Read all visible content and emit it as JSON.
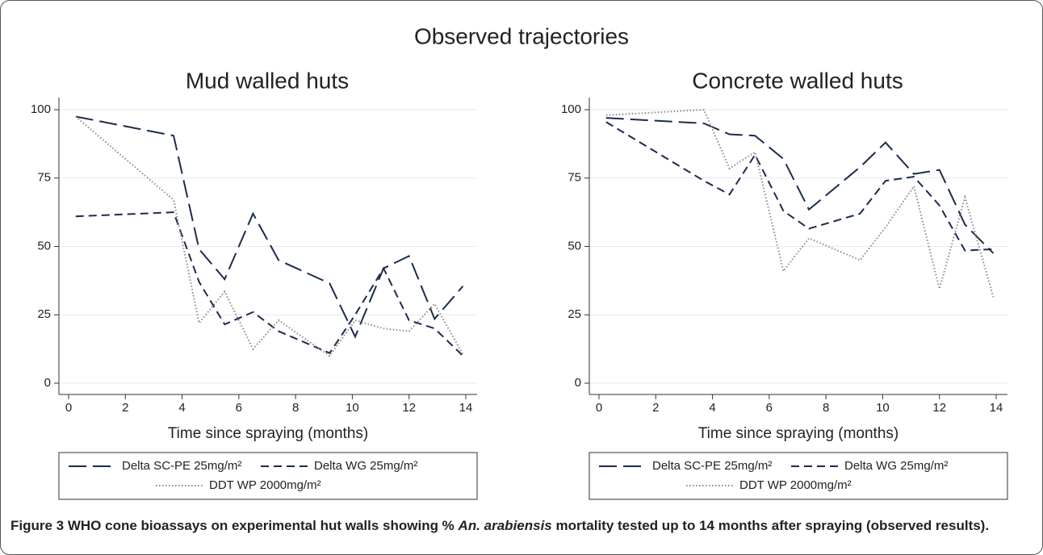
{
  "figure_title": "Observed trajectories",
  "chart_data": [
    {
      "type": "line",
      "title": "Mud walled huts",
      "xlabel": "Time since spraying (months)",
      "x": [
        0.25,
        3.7,
        4.6,
        5.5,
        6.5,
        7.4,
        9.2,
        10.1,
        11.1,
        12,
        12.9,
        13.9
      ],
      "series": [
        {
          "name": "Delta SC-PE 25mg/m²",
          "color": "#1c2b4f",
          "linestyle": "longdash",
          "values": [
            97.5,
            90.5,
            49,
            38,
            62,
            45,
            36.5,
            17,
            42,
            46.5,
            23.5,
            35.5
          ]
        },
        {
          "name": "Delta WG 25mg/m²",
          "color": "#1c2b4f",
          "linestyle": "dash",
          "values": [
            61,
            62.5,
            37,
            21.5,
            26,
            19,
            11,
            25,
            42,
            23,
            20,
            10
          ]
        },
        {
          "name": "DDT WP 2000mg/m²",
          "color": "#8a8a8a",
          "linestyle": "dot",
          "values": [
            97.5,
            67,
            22,
            33.5,
            12.5,
            23,
            10,
            23,
            20,
            19,
            29,
            10.5
          ]
        }
      ],
      "xlim": [
        0,
        14
      ],
      "xticks": [
        0,
        2,
        4,
        6,
        8,
        10,
        12,
        14
      ],
      "ylim": [
        0,
        100
      ],
      "yticks": [
        0,
        25,
        50,
        75,
        100
      ],
      "grid": true
    },
    {
      "type": "line",
      "title": "Concrete walled huts",
      "xlabel": "Time since spraying (months)",
      "x": [
        0.25,
        3.7,
        4.6,
        5.5,
        6.5,
        7.4,
        9.2,
        10.1,
        11.1,
        12,
        12.9,
        13.9
      ],
      "series": [
        {
          "name": "Delta SC-PE 25mg/m²",
          "color": "#1c2b4f",
          "linestyle": "longdash",
          "values": [
            97,
            95,
            91,
            90.5,
            82,
            63.5,
            79,
            88,
            76.5,
            78,
            58,
            47.5
          ]
        },
        {
          "name": "Delta WG 25mg/m²",
          "color": "#1c2b4f",
          "linestyle": "dash",
          "values": [
            95.5,
            74,
            69,
            83.5,
            63,
            56.5,
            62,
            74,
            75.5,
            65,
            48.5,
            49
          ]
        },
        {
          "name": "DDT WP 2000mg/m²",
          "color": "#8a8a8a",
          "linestyle": "dot",
          "values": [
            98,
            100,
            78.5,
            84.5,
            41,
            53,
            45,
            57,
            72,
            34.5,
            68,
            31.5
          ]
        }
      ],
      "xlim": [
        0,
        14
      ],
      "xticks": [
        0,
        2,
        4,
        6,
        8,
        10,
        12,
        14
      ],
      "ylim": [
        0,
        100
      ],
      "yticks": [
        0,
        25,
        50,
        75,
        100
      ],
      "grid": true
    }
  ],
  "caption": {
    "label": "Figure 3",
    "before": "WHO cone bioassays on experimental hut walls showing %",
    "species": "An. arabiensis",
    "after": "mortality tested up to 14 months after spraying (observed results)."
  }
}
